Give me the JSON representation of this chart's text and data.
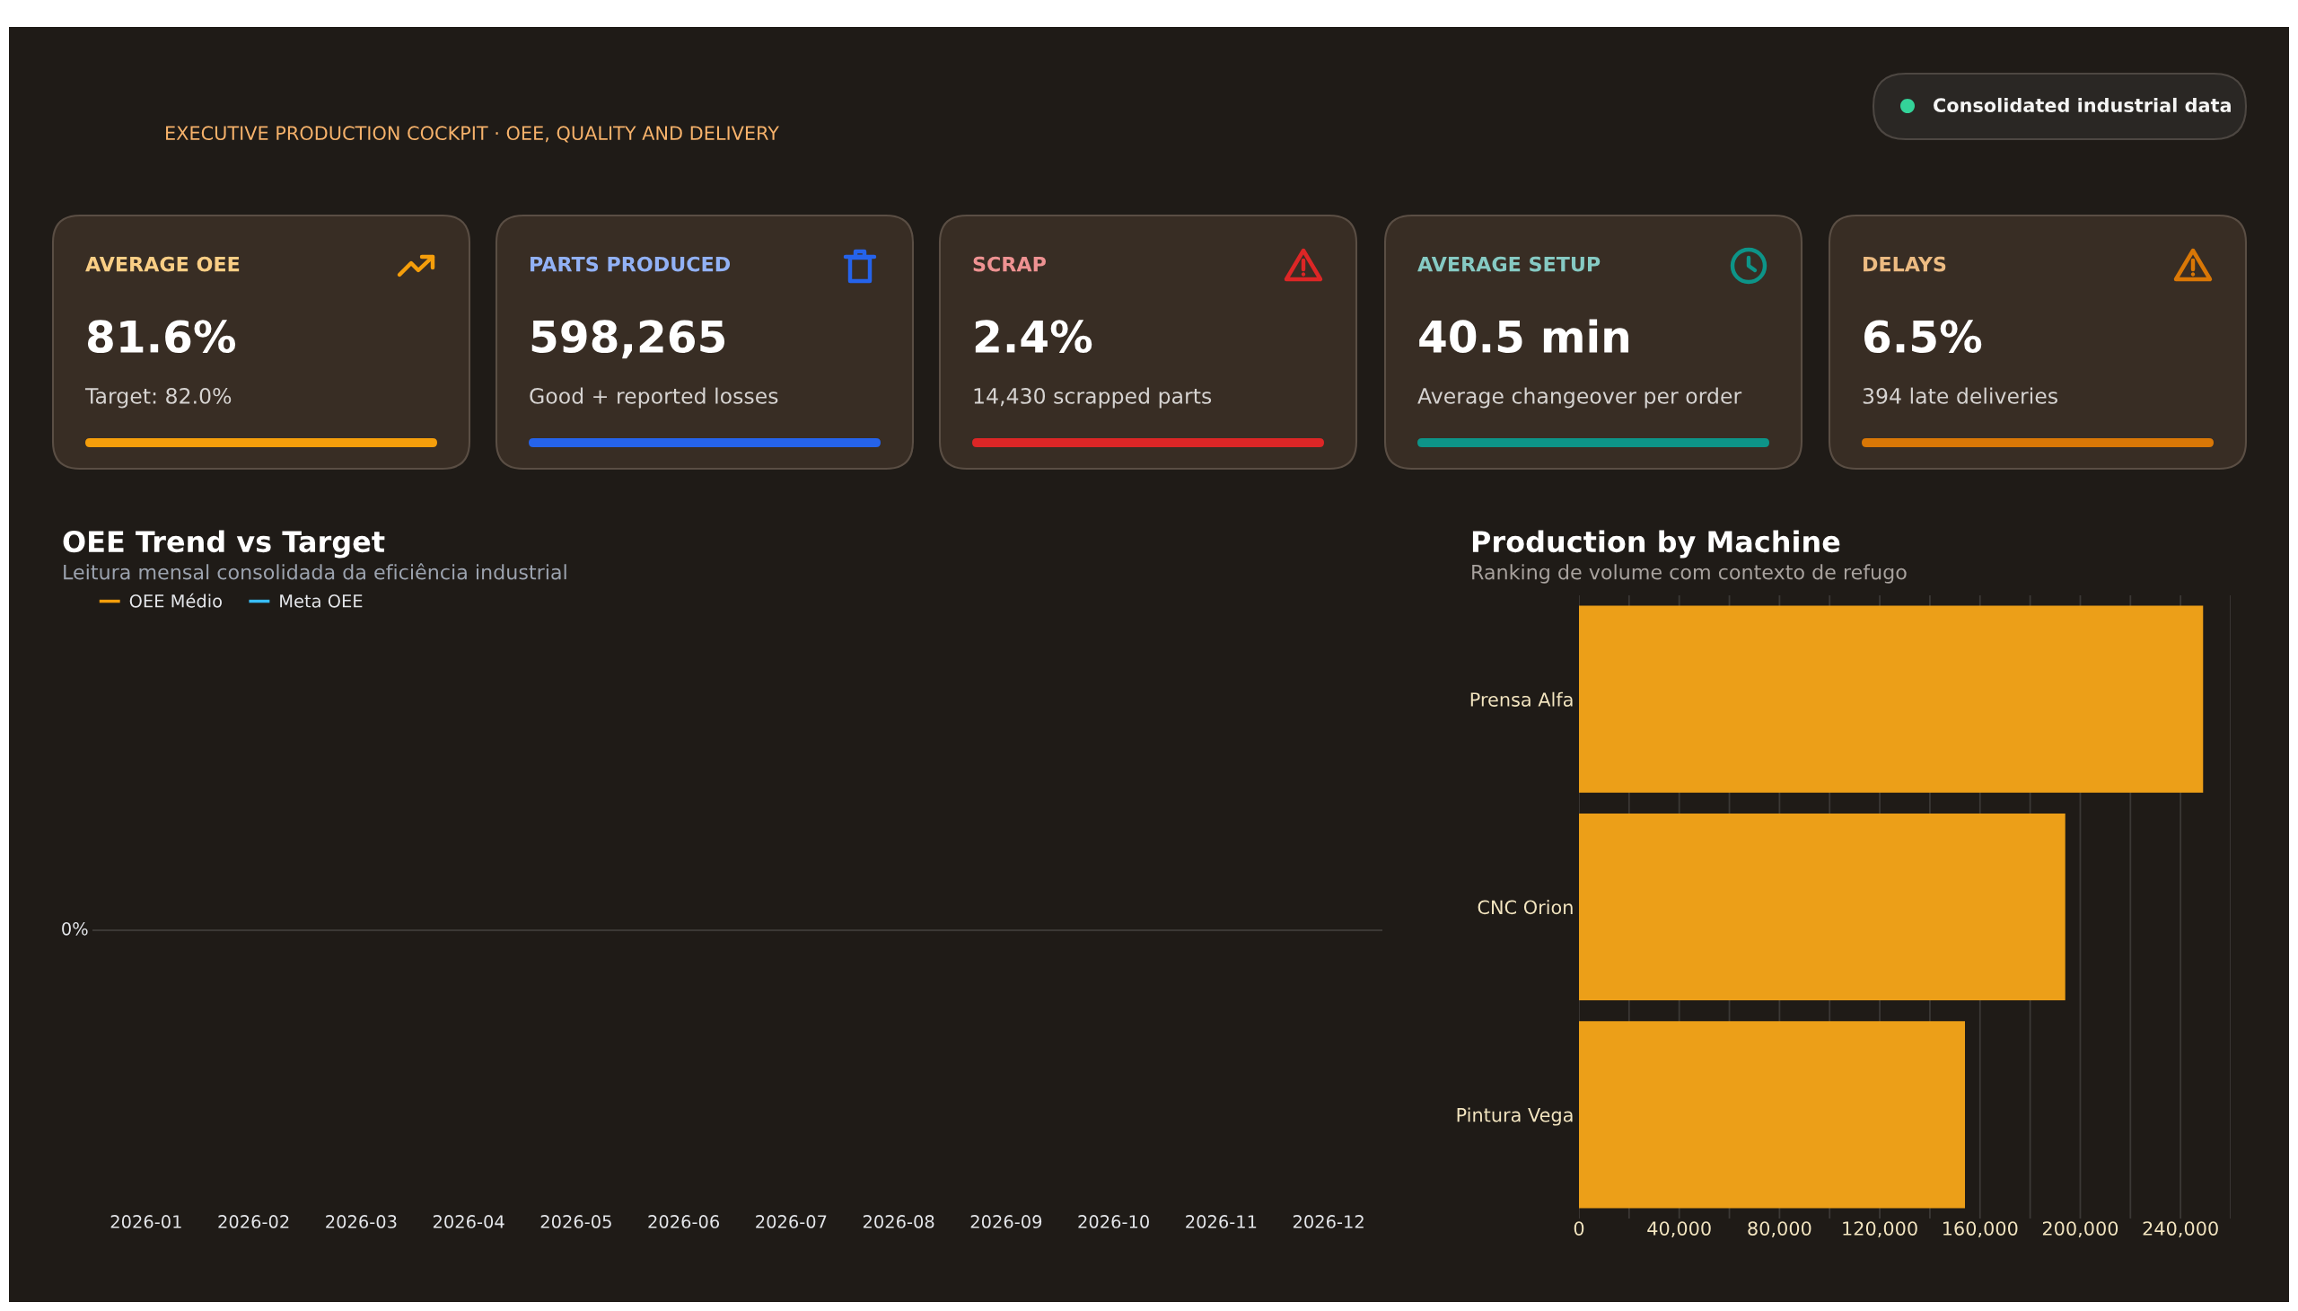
{
  "chart_data": [
    {
      "type": "other",
      "title": "EXECUTIVE PRODUCTION COCKPIT · OEE, QUALITY AND DELIVERY",
      "annotations": [
        "Consolidated industrial data"
      ]
    },
    {
      "type": "other",
      "title": "AVERAGE OEE",
      "annotations": [
        "81.6%",
        "Target: 82.0%"
      ],
      "color": "#f59e0b"
    },
    {
      "type": "other",
      "title": "PARTS PRODUCED",
      "annotations": [
        "598,265",
        "Good + reported losses"
      ],
      "color": "#2563eb"
    },
    {
      "type": "other",
      "title": "SCRAP",
      "annotations": [
        "2.4%",
        "14,430 scrapped parts"
      ],
      "color": "#dc2626"
    },
    {
      "type": "other",
      "title": "AVERAGE SETUP",
      "annotations": [
        "40.5 min",
        "Average changeover per order"
      ],
      "color": "#0d9488"
    },
    {
      "type": "other",
      "title": "DELAYS",
      "annotations": [
        "6.5%",
        "394 late deliveries"
      ],
      "color": "#d97706"
    },
    {
      "type": "other",
      "title": "OEE Trend vs Target",
      "subtitle": "Leitura mensal consolidada da eficiência industrial",
      "categories": [
        "2026-01",
        "2026-02",
        "2026-03",
        "2026-04",
        "2026-05",
        "2026-06",
        "2026-07",
        "2026-08",
        "2026-09",
        "2026-10",
        "2026-11",
        "2026-12"
      ],
      "series": [
        {
          "name": "OEE Médio",
          "color": "#f59e0b",
          "values": [
            null,
            null,
            null,
            null,
            null,
            null,
            null,
            null,
            null,
            null,
            null,
            null
          ]
        },
        {
          "name": "Meta OEE",
          "color": "#38bdf8",
          "values": [
            null,
            null,
            null,
            null,
            null,
            null,
            null,
            null,
            null,
            null,
            null,
            null
          ]
        }
      ],
      "annotations": [
        "0%"
      ],
      "legend": "top left"
    },
    {
      "type": "bar",
      "orientation": "horizontal",
      "title": "Production by Machine",
      "subtitle": "Ranking de volume com contexto de refugo",
      "categories": [
        "Prensa Alfa",
        "CNC Orion",
        "Pintura Vega"
      ],
      "values": [
        249000,
        194000,
        154000
      ],
      "color": "#ec9f18",
      "xlim": [
        0,
        260000
      ],
      "xticks": [
        0,
        {
          "value": 20000,
          "label": null
        },
        {
          "value": 40000,
          "label": "40,000"
        },
        {
          "value": 60000,
          "label": null
        },
        {
          "value": 80000,
          "label": "80,000"
        },
        {
          "value": 100000,
          "label": null
        },
        {
          "value": 120000,
          "label": "120,000"
        },
        {
          "value": 140000,
          "label": null
        },
        {
          "value": 160000,
          "label": "160,000"
        },
        {
          "value": 180000,
          "label": null
        },
        {
          "value": 200000,
          "label": "200,000"
        },
        {
          "value": 220000,
          "label": null
        },
        {
          "value": 240000,
          "label": "240,000"
        },
        {
          "value": 260000,
          "label": null
        }
      ],
      "grid": "x"
    }
  ]
}
